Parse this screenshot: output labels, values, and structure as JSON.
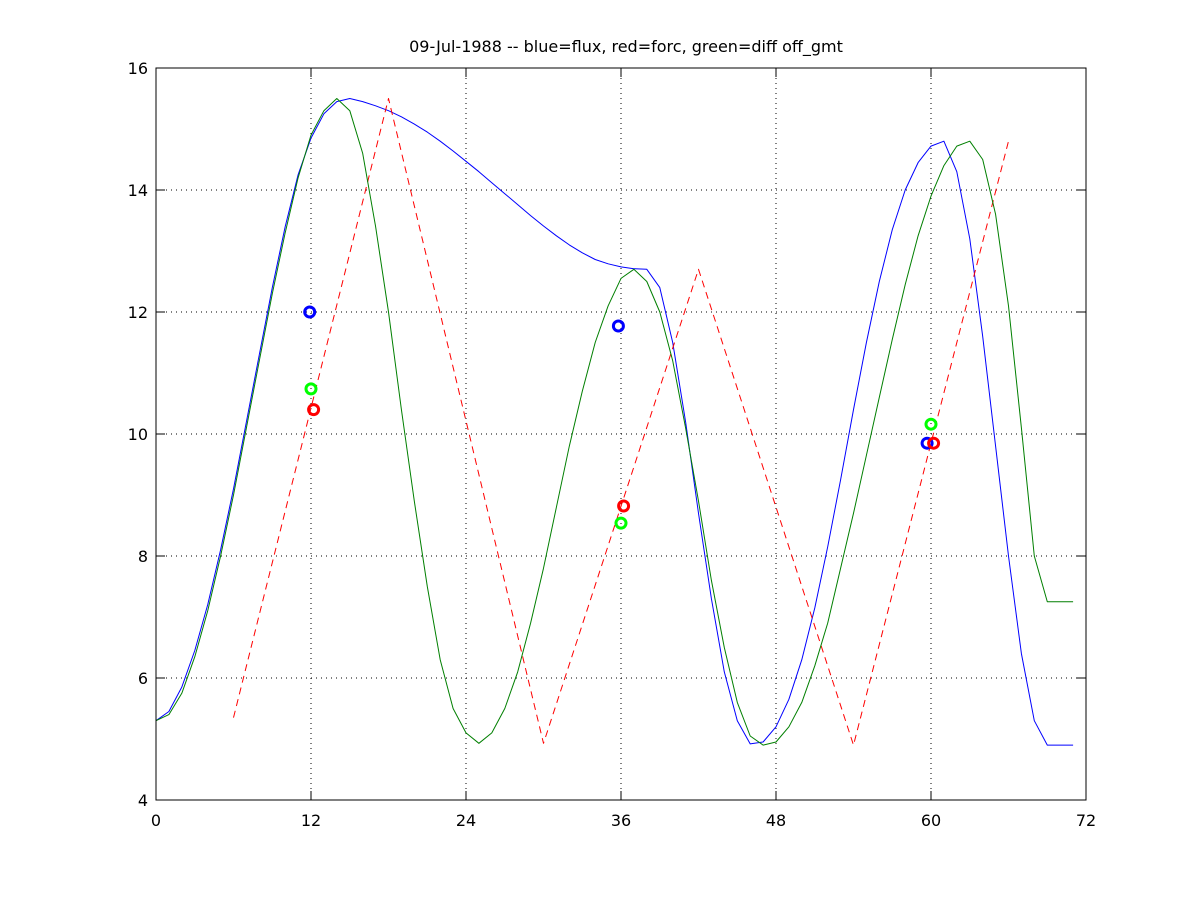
{
  "chart_data": {
    "type": "line",
    "title": "09-Jul-1988 -- blue=flux, red=forc, green=diff off_gmt",
    "xlabel": "",
    "ylabel": "",
    "xlim": [
      0,
      72
    ],
    "ylim": [
      4,
      16
    ],
    "xticks": [
      0,
      12,
      24,
      36,
      48,
      60,
      72
    ],
    "yticks": [
      4,
      6,
      8,
      10,
      12,
      14,
      16
    ],
    "grid": "dotted",
    "colors": {
      "flux": "#0000ff",
      "forc": "#ff0000",
      "diff": "#007f00",
      "diff_marker": "#00ff00"
    },
    "series": [
      {
        "key": "flux",
        "style": "solid",
        "x": [
          0,
          1,
          2,
          3,
          4,
          5,
          6,
          7,
          8,
          9,
          10,
          11,
          12,
          13,
          14,
          15,
          16,
          17,
          18,
          19,
          20,
          21,
          22,
          23,
          24,
          25,
          26,
          27,
          28,
          29,
          30,
          31,
          32,
          33,
          34,
          35,
          36,
          37,
          38,
          39,
          40,
          41,
          42,
          43,
          44,
          45,
          46,
          47,
          48,
          49,
          50,
          51,
          52,
          53,
          54,
          55,
          56,
          57,
          58,
          59,
          60,
          61,
          62,
          63,
          64,
          65,
          66,
          67,
          68,
          69,
          70,
          71
        ],
        "values": [
          5.3,
          5.45,
          5.85,
          6.45,
          7.2,
          8.1,
          9.1,
          10.2,
          11.3,
          12.4,
          13.4,
          14.25,
          14.85,
          15.25,
          15.45,
          15.5,
          15.45,
          15.38,
          15.3,
          15.2,
          15.08,
          14.95,
          14.8,
          14.64,
          14.47,
          14.3,
          14.12,
          13.94,
          13.76,
          13.58,
          13.41,
          13.25,
          13.1,
          12.97,
          12.86,
          12.79,
          12.74,
          12.71,
          12.7,
          12.4,
          11.5,
          10.2,
          8.7,
          7.3,
          6.1,
          5.3,
          4.92,
          4.95,
          5.2,
          5.65,
          6.3,
          7.15,
          8.15,
          9.25,
          10.4,
          11.5,
          12.5,
          13.35,
          14.0,
          14.45,
          14.72,
          14.8,
          14.3,
          13.2,
          11.6,
          9.8,
          8.0,
          6.4,
          5.3,
          4.9,
          4.9,
          4.9
        ]
      },
      {
        "key": "forc",
        "style": "dashed",
        "x": [
          6,
          18,
          30,
          42,
          54,
          66
        ],
        "values": [
          5.35,
          15.5,
          4.93,
          12.7,
          4.9,
          14.8
        ]
      },
      {
        "key": "diff",
        "style": "solid",
        "x": [
          0,
          1,
          2,
          3,
          4,
          5,
          6,
          7,
          8,
          9,
          10,
          11,
          12,
          13,
          14,
          15,
          16,
          17,
          18,
          19,
          20,
          21,
          22,
          23,
          24,
          25,
          26,
          27,
          28,
          29,
          30,
          31,
          32,
          33,
          34,
          35,
          36,
          37,
          38,
          39,
          40,
          41,
          42,
          43,
          44,
          45,
          46,
          47,
          48,
          49,
          50,
          51,
          52,
          53,
          54,
          55,
          56,
          57,
          58,
          59,
          60,
          61,
          62,
          63,
          64,
          65,
          66,
          67,
          68,
          69,
          70,
          71
        ],
        "values": [
          5.3,
          5.4,
          5.75,
          6.35,
          7.1,
          8.0,
          9.0,
          10.1,
          11.2,
          12.3,
          13.3,
          14.2,
          14.9,
          15.3,
          15.5,
          15.3,
          14.6,
          13.4,
          12.0,
          10.4,
          8.9,
          7.5,
          6.3,
          5.5,
          5.1,
          4.93,
          5.1,
          5.5,
          6.1,
          6.9,
          7.8,
          8.8,
          9.8,
          10.7,
          11.5,
          12.1,
          12.55,
          12.7,
          12.5,
          12.0,
          11.2,
          10.1,
          8.9,
          7.6,
          6.5,
          5.6,
          5.05,
          4.9,
          4.95,
          5.2,
          5.6,
          6.2,
          6.9,
          7.8,
          8.7,
          9.65,
          10.6,
          11.55,
          12.45,
          13.25,
          13.9,
          14.4,
          14.72,
          14.8,
          14.5,
          13.6,
          12.1,
          10.1,
          8.0,
          7.25,
          7.25,
          7.25
        ]
      }
    ],
    "markers": [
      {
        "series": "flux",
        "x": [
          11.9,
          35.8,
          59.7
        ],
        "values": [
          12.0,
          11.77,
          9.85
        ]
      },
      {
        "series": "forc",
        "x": [
          12.2,
          36.2,
          60.2
        ],
        "values": [
          10.4,
          8.82,
          9.85
        ]
      },
      {
        "series": "diff",
        "x": [
          12.0,
          36.0,
          60.0
        ],
        "values": [
          10.74,
          8.54,
          10.16
        ]
      }
    ]
  }
}
